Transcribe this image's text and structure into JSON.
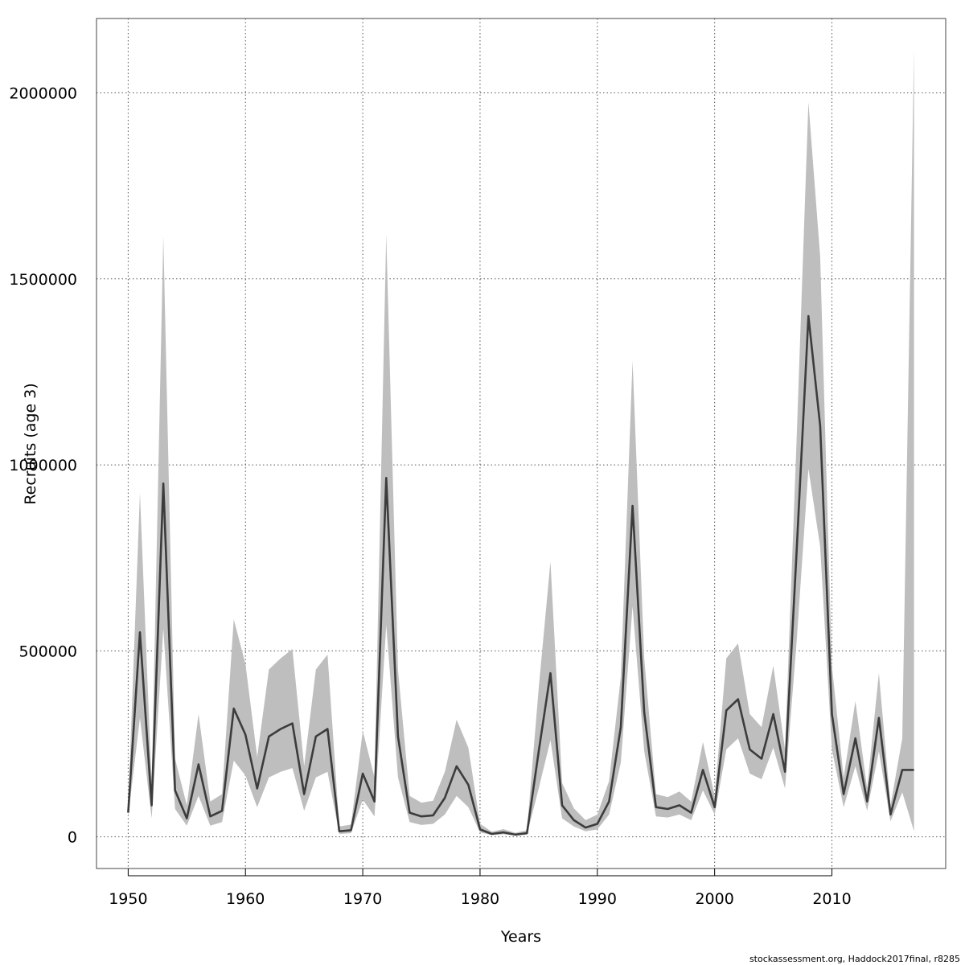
{
  "chart_data": {
    "type": "line",
    "xlabel": "Years",
    "ylabel": "Recruits (age 3)",
    "xlim": [
      1947.3,
      2019.7
    ],
    "ylim": [
      -85000,
      2200000
    ],
    "x_ticks": [
      1950,
      1960,
      1970,
      1980,
      1990,
      2000,
      2010
    ],
    "y_ticks": [
      0,
      500000,
      1000000,
      1500000,
      2000000
    ],
    "grid": true,
    "series": [
      {
        "x": [
          1950,
          1951,
          1952,
          1953,
          1954,
          1955,
          1956,
          1957,
          1958,
          1959,
          1960,
          1961,
          1962,
          1963,
          1964,
          1965,
          1966,
          1967,
          1968,
          1969,
          1970,
          1971,
          1972,
          1973,
          1974,
          1975,
          1976,
          1977,
          1978,
          1979,
          1980,
          1981,
          1982,
          1983,
          1984,
          1985,
          1986,
          1987,
          1988,
          1989,
          1990,
          1991,
          1992,
          1993,
          1994,
          1995,
          1996,
          1997,
          1998,
          1999,
          2000,
          2001,
          2002,
          2003,
          2004,
          2005,
          2006,
          2007,
          2008,
          2009,
          2010,
          2011,
          2012,
          2013,
          2014,
          2015,
          2016,
          2017
        ],
        "values": [
          65000,
          550000,
          85000,
          950000,
          125000,
          50000,
          195000,
          55000,
          70000,
          345000,
          275000,
          130000,
          270000,
          290000,
          305000,
          115000,
          270000,
          290000,
          15000,
          18000,
          170000,
          95000,
          965000,
          270000,
          65000,
          55000,
          58000,
          105000,
          190000,
          140000,
          20000,
          8000,
          12000,
          6000,
          10000,
          230000,
          440000,
          85000,
          45000,
          25000,
          35000,
          95000,
          295000,
          890000,
          335000,
          80000,
          75000,
          85000,
          65000,
          180000,
          80000,
          340000,
          370000,
          235000,
          210000,
          330000,
          175000,
          775000,
          1400000,
          1105000,
          330000,
          115000,
          265000,
          95000,
          320000,
          60000,
          180000,
          180000
        ],
        "lower": [
          55000,
          320000,
          50000,
          560000,
          75000,
          30000,
          110000,
          30000,
          40000,
          205000,
          165000,
          80000,
          160000,
          175000,
          185000,
          70000,
          160000,
          175000,
          8000,
          10000,
          100000,
          55000,
          570000,
          160000,
          40000,
          32000,
          35000,
          60000,
          110000,
          80000,
          12000,
          5000,
          7000,
          4000,
          6000,
          130000,
          260000,
          50000,
          28000,
          15000,
          20000,
          60000,
          200000,
          620000,
          230000,
          55000,
          52000,
          60000,
          45000,
          125000,
          60000,
          235000,
          265000,
          170000,
          155000,
          240000,
          130000,
          530000,
          990000,
          780000,
          235000,
          80000,
          190000,
          70000,
          230000,
          42000,
          120000,
          15000
        ],
        "upper": [
          80000,
          925000,
          140000,
          1615000,
          210000,
          85000,
          330000,
          95000,
          115000,
          585000,
          465000,
          215000,
          450000,
          480000,
          505000,
          190000,
          450000,
          490000,
          28000,
          33000,
          285000,
          160000,
          1620000,
          450000,
          110000,
          92000,
          97000,
          175000,
          315000,
          240000,
          35000,
          14000,
          21000,
          11000,
          18000,
          400000,
          740000,
          145000,
          77000,
          45000,
          60000,
          150000,
          430000,
          1280000,
          480000,
          115000,
          107000,
          122000,
          95000,
          255000,
          110000,
          480000,
          520000,
          330000,
          295000,
          460000,
          235000,
          1080000,
          1975000,
          1560000,
          460000,
          160000,
          365000,
          130000,
          440000,
          85000,
          265000,
          2115000
        ]
      }
    ]
  },
  "footer": {
    "source": "stockassessment.org, Haddock2017final, r8285"
  }
}
